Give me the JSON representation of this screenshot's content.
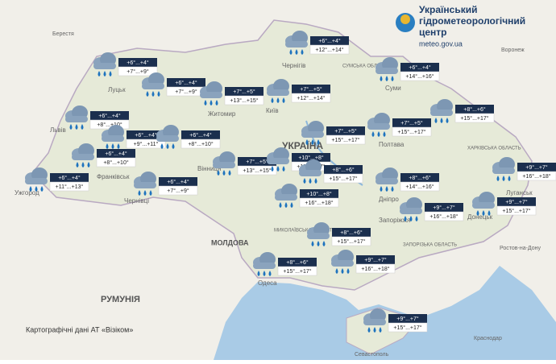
{
  "header": {
    "title_lines": [
      "Український",
      "гідрометеорологічний",
      "центр"
    ],
    "url": "meteo.gov.ua"
  },
  "forecasts": [
    {
      "night": "+6°...+4°",
      "day": "+7°...+9°"
    },
    {
      "night": "+6°...+4°",
      "day": "+7°...+9°"
    },
    {
      "night": "+7°...+5°",
      "day": "+13°...+15°"
    },
    {
      "night": "+7°...+5°",
      "day": "+12°...+14°"
    },
    {
      "night": "+6°...+4°",
      "day": "+12°...+14°"
    },
    {
      "night": "+6°...+4°",
      "day": "+14°...+16°"
    },
    {
      "night": "+8°...+6°",
      "day": "+15°...+17°"
    },
    {
      "night": "+7°...+5°",
      "day": "+15°...+17°"
    },
    {
      "night": "+7°...+5°",
      "day": "+15°...+17°"
    },
    {
      "night": "+6°...+4°",
      "day": "+8°...+10°"
    },
    {
      "night": "+6°...+4°",
      "day": "+9°...+11°"
    },
    {
      "night": "+6°...+4°",
      "day": "+8°...+10°"
    },
    {
      "night": "+6°...+4°",
      "day": "+8°...+10°"
    },
    {
      "night": "+6°...+4°",
      "day": "+11°...+13°"
    },
    {
      "night": "+6°...+4°",
      "day": "+7°...+9°"
    },
    {
      "night": "+7°...+5°",
      "day": "+13°...+15°"
    },
    {
      "night": "+10°...+8°",
      "day": "+15°...+17°"
    },
    {
      "night": "+8°...+6°",
      "day": "+15°...+17°"
    },
    {
      "night": "+8°...+6°",
      "day": "+14°...+16°"
    },
    {
      "night": "+9°...+7°",
      "day": "+16°...+18°"
    },
    {
      "night": "+10°...+8°",
      "day": "+16°...+18°"
    },
    {
      "night": "+9°...+7°",
      "day": "+16°...+18°"
    },
    {
      "night": "+9°...+7°",
      "day": "+15°...+17°"
    },
    {
      "night": "+8°...+6°",
      "day": "+15°...+17°"
    },
    {
      "night": "+8°...+6°",
      "day": "+15°...+17°"
    },
    {
      "night": "+9°...+7°",
      "day": "+16°...+18°"
    },
    {
      "night": "+9°...+7°",
      "day": "+15°...+17°"
    }
  ],
  "map_labels": [
    "УКРАЇНА",
    "МОЛДОВА",
    "РУМУНІЯ",
    "Київ",
    "Житомир",
    "Луцьк",
    "Львів",
    "Чернігів",
    "Суми",
    "Полтава",
    "ХАРКІВСЬКА ОБЛАСТЬ",
    "СУМСЬКА ОБЛАСТЬ",
    "Дніпро",
    "Запоріжжя",
    "Одеса",
    "Вінниця",
    "Чернівці",
    "Ужгород",
    "Луганськ",
    "Донецьк",
    "Краснодар",
    "Воронеж",
    "Ростов-на-Дону",
    "Севастополь",
    "Берестя",
    "МИКОЛАЇВСЬКА ОБЛАСТЬ",
    "ЗАПОРІЗЬКА ОБЛАСТЬ",
    "Франківськ"
  ],
  "footer": "Картографічні дані АТ «Візіком»"
}
